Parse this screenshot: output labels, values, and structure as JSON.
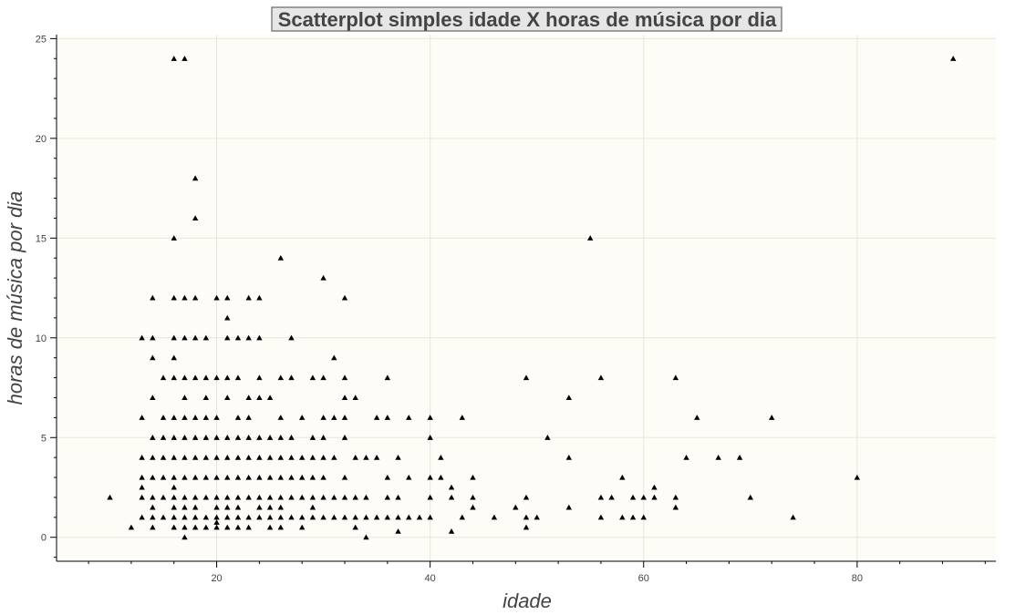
{
  "chart_data": {
    "type": "scatter",
    "title": "Scatterplot simples idade X horas de música por dia",
    "xlabel": "idade",
    "ylabel": "horas de música por dia",
    "xlim": [
      5,
      93
    ],
    "ylim": [
      -1.2,
      25.2
    ],
    "x_ticks": [
      20,
      40,
      60,
      80
    ],
    "y_ticks": [
      0,
      5,
      10,
      15,
      20,
      25
    ],
    "x_tick_labels": [
      "20",
      "40",
      "60",
      "80"
    ],
    "y_tick_labels": [
      "0",
      "5",
      "10",
      "15",
      "20",
      "25"
    ],
    "grid": true,
    "marker": "triangle",
    "colors": {
      "background": "#fdfcf7",
      "marker": "#000000",
      "grid": "#e8e6dc",
      "title_box": "#e6e6e6"
    },
    "points": [
      [
        10,
        2
      ],
      [
        12,
        0.5
      ],
      [
        13,
        10
      ],
      [
        13,
        6
      ],
      [
        13,
        4
      ],
      [
        13,
        3
      ],
      [
        13,
        2.5
      ],
      [
        13,
        2
      ],
      [
        13,
        1
      ],
      [
        14,
        12
      ],
      [
        14,
        10
      ],
      [
        14,
        9
      ],
      [
        14,
        7
      ],
      [
        14,
        5
      ],
      [
        14,
        4
      ],
      [
        14,
        3
      ],
      [
        14,
        2
      ],
      [
        14,
        1.5
      ],
      [
        14,
        1
      ],
      [
        14,
        0.5
      ],
      [
        15,
        8
      ],
      [
        15,
        6
      ],
      [
        15,
        5
      ],
      [
        15,
        4
      ],
      [
        15,
        3
      ],
      [
        15,
        2
      ],
      [
        15,
        1
      ],
      [
        16,
        24
      ],
      [
        16,
        15
      ],
      [
        16,
        12
      ],
      [
        16,
        10
      ],
      [
        16,
        9
      ],
      [
        16,
        8
      ],
      [
        16,
        6
      ],
      [
        16,
        5
      ],
      [
        16,
        4
      ],
      [
        16,
        3
      ],
      [
        16,
        2.5
      ],
      [
        16,
        2
      ],
      [
        16,
        1.5
      ],
      [
        16,
        1
      ],
      [
        16,
        0.5
      ],
      [
        17,
        24
      ],
      [
        17,
        12
      ],
      [
        17,
        10
      ],
      [
        17,
        8
      ],
      [
        17,
        7
      ],
      [
        17,
        6
      ],
      [
        17,
        5
      ],
      [
        17,
        4
      ],
      [
        17,
        3
      ],
      [
        17,
        2
      ],
      [
        17,
        1.5
      ],
      [
        17,
        1
      ],
      [
        17,
        0.5
      ],
      [
        17,
        0
      ],
      [
        18,
        18
      ],
      [
        18,
        16
      ],
      [
        18,
        12
      ],
      [
        18,
        10
      ],
      [
        18,
        8
      ],
      [
        18,
        6
      ],
      [
        18,
        5
      ],
      [
        18,
        4
      ],
      [
        18,
        3
      ],
      [
        18,
        2
      ],
      [
        18,
        1.5
      ],
      [
        18,
        1
      ],
      [
        18,
        0.5
      ],
      [
        19,
        10
      ],
      [
        19,
        8
      ],
      [
        19,
        7
      ],
      [
        19,
        6
      ],
      [
        19,
        5
      ],
      [
        19,
        4
      ],
      [
        19,
        3
      ],
      [
        19,
        2
      ],
      [
        19,
        1
      ],
      [
        19,
        0.5
      ],
      [
        20,
        12
      ],
      [
        20,
        8
      ],
      [
        20,
        6
      ],
      [
        20,
        5
      ],
      [
        20,
        4
      ],
      [
        20,
        3
      ],
      [
        20,
        2
      ],
      [
        20,
        1.5
      ],
      [
        20,
        1
      ],
      [
        20,
        0.75
      ],
      [
        20,
        0.5
      ],
      [
        21,
        12
      ],
      [
        21,
        11
      ],
      [
        21,
        10
      ],
      [
        21,
        8
      ],
      [
        21,
        7
      ],
      [
        21,
        5
      ],
      [
        21,
        4
      ],
      [
        21,
        3
      ],
      [
        21,
        2
      ],
      [
        21,
        1.5
      ],
      [
        21,
        1
      ],
      [
        21,
        0.5
      ],
      [
        22,
        10
      ],
      [
        22,
        8
      ],
      [
        22,
        6
      ],
      [
        22,
        5
      ],
      [
        22,
        4
      ],
      [
        22,
        3
      ],
      [
        22,
        2
      ],
      [
        22,
        1.5
      ],
      [
        22,
        1
      ],
      [
        22,
        0.5
      ],
      [
        23,
        12
      ],
      [
        23,
        10
      ],
      [
        23,
        7
      ],
      [
        23,
        6
      ],
      [
        23,
        5
      ],
      [
        23,
        4
      ],
      [
        23,
        3
      ],
      [
        23,
        2
      ],
      [
        23,
        1
      ],
      [
        23,
        0.5
      ],
      [
        24,
        12
      ],
      [
        24,
        10
      ],
      [
        24,
        8
      ],
      [
        24,
        7
      ],
      [
        24,
        5
      ],
      [
        24,
        4
      ],
      [
        24,
        3
      ],
      [
        24,
        2
      ],
      [
        24,
        1.5
      ],
      [
        24,
        1
      ],
      [
        25,
        7
      ],
      [
        25,
        5
      ],
      [
        25,
        4
      ],
      [
        25,
        3
      ],
      [
        25,
        2
      ],
      [
        25,
        1.5
      ],
      [
        25,
        1
      ],
      [
        25,
        0.5
      ],
      [
        26,
        14
      ],
      [
        26,
        8
      ],
      [
        26,
        6
      ],
      [
        26,
        5
      ],
      [
        26,
        4
      ],
      [
        26,
        3
      ],
      [
        26,
        2
      ],
      [
        26,
        1.5
      ],
      [
        26,
        1
      ],
      [
        26,
        0.5
      ],
      [
        27,
        10
      ],
      [
        27,
        8
      ],
      [
        27,
        5
      ],
      [
        27,
        4
      ],
      [
        27,
        3
      ],
      [
        27,
        2
      ],
      [
        27,
        1
      ],
      [
        28,
        6
      ],
      [
        28,
        4
      ],
      [
        28,
        3
      ],
      [
        28,
        2
      ],
      [
        28,
        1
      ],
      [
        28,
        0.5
      ],
      [
        29,
        8
      ],
      [
        29,
        5
      ],
      [
        29,
        4
      ],
      [
        29,
        3
      ],
      [
        29,
        2
      ],
      [
        29,
        1.5
      ],
      [
        29,
        1
      ],
      [
        30,
        13
      ],
      [
        30,
        8
      ],
      [
        30,
        6
      ],
      [
        30,
        5
      ],
      [
        30,
        4
      ],
      [
        30,
        3
      ],
      [
        30,
        2
      ],
      [
        30,
        1
      ],
      [
        31,
        9
      ],
      [
        31,
        6
      ],
      [
        31,
        4
      ],
      [
        31,
        2
      ],
      [
        31,
        1
      ],
      [
        32,
        12
      ],
      [
        32,
        8
      ],
      [
        32,
        7
      ],
      [
        32,
        6
      ],
      [
        32,
        5
      ],
      [
        32,
        3
      ],
      [
        32,
        2
      ],
      [
        32,
        1
      ],
      [
        33,
        7
      ],
      [
        33,
        4
      ],
      [
        33,
        2
      ],
      [
        33,
        1
      ],
      [
        33,
        0.5
      ],
      [
        34,
        4
      ],
      [
        34,
        2
      ],
      [
        34,
        1
      ],
      [
        34,
        0
      ],
      [
        35,
        6
      ],
      [
        35,
        4
      ],
      [
        35,
        1
      ],
      [
        36,
        8
      ],
      [
        36,
        6
      ],
      [
        36,
        3
      ],
      [
        36,
        2
      ],
      [
        36,
        1
      ],
      [
        37,
        4
      ],
      [
        37,
        2
      ],
      [
        37,
        1
      ],
      [
        37,
        0.3
      ],
      [
        38,
        6
      ],
      [
        38,
        3
      ],
      [
        38,
        1
      ],
      [
        39,
        1
      ],
      [
        40,
        6
      ],
      [
        40,
        5
      ],
      [
        40,
        3
      ],
      [
        40,
        2
      ],
      [
        40,
        1
      ],
      [
        41,
        4
      ],
      [
        41,
        3
      ],
      [
        42,
        2.5
      ],
      [
        42,
        2
      ],
      [
        42,
        0.3
      ],
      [
        43,
        6
      ],
      [
        43,
        1
      ],
      [
        44,
        3
      ],
      [
        44,
        2
      ],
      [
        44,
        1.5
      ],
      [
        46,
        1
      ],
      [
        48,
        1.5
      ],
      [
        49,
        8
      ],
      [
        49,
        2
      ],
      [
        49,
        1
      ],
      [
        49,
        0.5
      ],
      [
        50,
        1
      ],
      [
        51,
        5
      ],
      [
        53,
        7
      ],
      [
        53,
        4
      ],
      [
        53,
        1.5
      ],
      [
        55,
        15
      ],
      [
        56,
        8
      ],
      [
        56,
        2
      ],
      [
        56,
        1
      ],
      [
        57,
        2
      ],
      [
        58,
        3
      ],
      [
        58,
        1
      ],
      [
        59,
        2
      ],
      [
        59,
        1
      ],
      [
        60,
        2
      ],
      [
        60,
        1
      ],
      [
        61,
        2.5
      ],
      [
        61,
        2
      ],
      [
        63,
        8
      ],
      [
        63,
        2
      ],
      [
        63,
        1.5
      ],
      [
        64,
        4
      ],
      [
        65,
        6
      ],
      [
        67,
        4
      ],
      [
        69,
        4
      ],
      [
        70,
        2
      ],
      [
        72,
        6
      ],
      [
        74,
        1
      ],
      [
        80,
        3
      ],
      [
        89,
        24
      ]
    ]
  }
}
